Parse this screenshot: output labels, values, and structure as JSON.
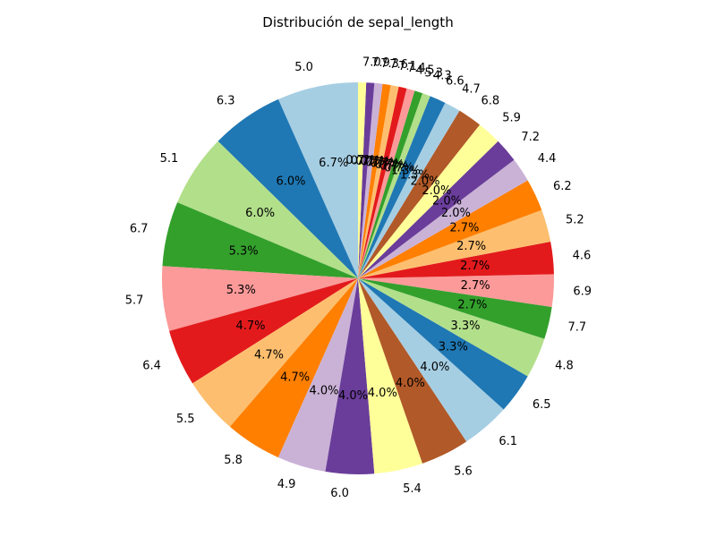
{
  "chart_data": {
    "type": "pie",
    "title": "Distribución de sepal_length",
    "start_angle_deg": 90,
    "direction": "counterclockwise",
    "categories": [
      "5.0",
      "6.3",
      "5.1",
      "6.7",
      "5.7",
      "6.4",
      "5.5",
      "5.8",
      "4.9",
      "6.0",
      "5.4",
      "5.6",
      "6.1",
      "6.5",
      "4.8",
      "7.7",
      "6.9",
      "4.6",
      "5.2",
      "6.2",
      "4.4",
      "7.2",
      "5.9",
      "6.8",
      "4.7",
      "6.6",
      "4.3",
      "5.3",
      "4.5",
      "7.4",
      "7.1",
      "7.6",
      "7.3",
      "7.9",
      "7.0"
    ],
    "values": [
      10,
      9,
      9,
      8,
      8,
      7,
      7,
      7,
      6,
      6,
      6,
      6,
      6,
      5,
      5,
      4,
      4,
      4,
      4,
      4,
      3,
      3,
      3,
      3,
      2,
      2,
      1,
      1,
      1,
      1,
      1,
      1,
      1,
      1,
      1
    ],
    "percent_labels": [
      "6.7%",
      "6.0%",
      "6.0%",
      "5.3%",
      "5.3%",
      "4.7%",
      "4.7%",
      "4.7%",
      "4.0%",
      "4.0%",
      "4.0%",
      "4.0%",
      "4.0%",
      "3.3%",
      "3.3%",
      "2.7%",
      "2.7%",
      "2.7%",
      "2.7%",
      "2.7%",
      "2.0%",
      "2.0%",
      "2.0%",
      "2.0%",
      "1.3%",
      "1.3%",
      "0.7%",
      "0.7%",
      "0.7%",
      "0.7%",
      "0.7%",
      "0.7%",
      "0.7%",
      "0.7%",
      "0.7%"
    ],
    "colors": [
      "#a6cee3",
      "#1f78b4",
      "#b2df8a",
      "#33a02c",
      "#fb9a99",
      "#e31a1c",
      "#fdbf6f",
      "#ff7f00",
      "#cab2d6",
      "#6a3d9a",
      "#ffff99",
      "#b15928"
    ]
  }
}
